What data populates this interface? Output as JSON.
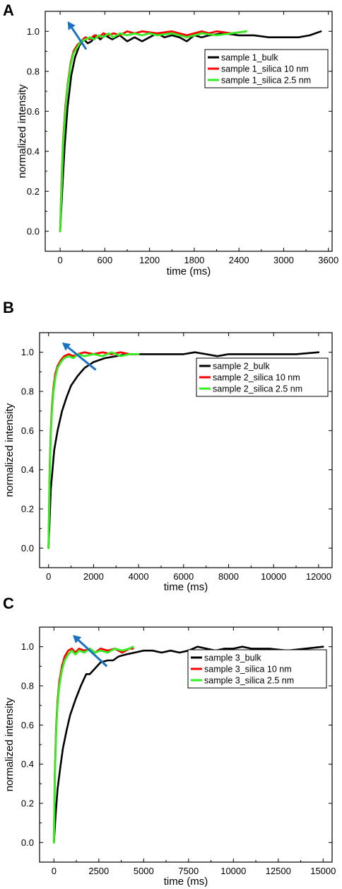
{
  "chart_data": [
    {
      "type": "line",
      "panel": "A",
      "xlabel": "time (ms)",
      "ylabel": "normalized intensity",
      "xlim": [
        -200,
        3650
      ],
      "ylim": [
        -0.1,
        1.1
      ],
      "xticks": [
        0,
        600,
        1200,
        1800,
        2400,
        3000,
        3600
      ],
      "yticks": [
        0.0,
        0.2,
        0.4,
        0.6,
        0.8,
        1.0
      ],
      "grid": false,
      "legend": "right",
      "arrow": {
        "from": [
          350,
          0.91
        ],
        "to": [
          100,
          1.05
        ]
      },
      "series": [
        {
          "name": "sample 1_bulk",
          "color": "#000000",
          "points": [
            [
              0,
              0.0
            ],
            [
              30,
              0.22
            ],
            [
              60,
              0.42
            ],
            [
              100,
              0.62
            ],
            [
              150,
              0.78
            ],
            [
              200,
              0.87
            ],
            [
              260,
              0.93
            ],
            [
              320,
              0.96
            ],
            [
              370,
              0.94
            ],
            [
              420,
              0.95
            ],
            [
              480,
              0.98
            ],
            [
              540,
              0.96
            ],
            [
              600,
              0.98
            ],
            [
              700,
              0.96
            ],
            [
              800,
              0.98
            ],
            [
              900,
              0.95
            ],
            [
              1000,
              0.97
            ],
            [
              1100,
              0.95
            ],
            [
              1200,
              0.97
            ],
            [
              1300,
              0.99
            ],
            [
              1400,
              0.97
            ],
            [
              1500,
              0.98
            ],
            [
              1600,
              0.97
            ],
            [
              1700,
              0.95
            ],
            [
              1800,
              0.98
            ],
            [
              1900,
              0.97
            ],
            [
              2000,
              0.98
            ],
            [
              2200,
              0.99
            ],
            [
              2400,
              0.98
            ],
            [
              2600,
              0.98
            ],
            [
              2800,
              0.97
            ],
            [
              3000,
              0.97
            ],
            [
              3200,
              0.97
            ],
            [
              3350,
              0.98
            ],
            [
              3500,
              1.0
            ]
          ]
        },
        {
          "name": "sample 1_silica 10 nm",
          "color": "#ff0000",
          "points": [
            [
              0,
              0.0
            ],
            [
              20,
              0.25
            ],
            [
              40,
              0.45
            ],
            [
              70,
              0.62
            ],
            [
              100,
              0.73
            ],
            [
              140,
              0.84
            ],
            [
              180,
              0.9
            ],
            [
              230,
              0.93
            ],
            [
              280,
              0.95
            ],
            [
              340,
              0.97
            ],
            [
              400,
              0.96
            ],
            [
              460,
              0.98
            ],
            [
              520,
              0.97
            ],
            [
              580,
              0.99
            ],
            [
              650,
              0.98
            ],
            [
              720,
              0.99
            ],
            [
              800,
              0.98
            ],
            [
              900,
              1.0
            ],
            [
              1000,
              0.99
            ],
            [
              1100,
              1.0
            ],
            [
              1300,
              0.99
            ],
            [
              1500,
              1.0
            ],
            [
              1700,
              0.98
            ],
            [
              1900,
              1.0
            ],
            [
              2000,
              0.99
            ],
            [
              2100,
              1.0
            ],
            [
              2300,
              0.99
            ],
            [
              2500,
              1.0
            ]
          ]
        },
        {
          "name": "sample 1_silica 2.5 nm",
          "color": "#33ee22",
          "points": [
            [
              0,
              0.0
            ],
            [
              20,
              0.22
            ],
            [
              40,
              0.43
            ],
            [
              70,
              0.6
            ],
            [
              100,
              0.72
            ],
            [
              140,
              0.83
            ],
            [
              180,
              0.89
            ],
            [
              230,
              0.92
            ],
            [
              280,
              0.95
            ],
            [
              340,
              0.96
            ],
            [
              400,
              0.97
            ],
            [
              460,
              0.96
            ],
            [
              520,
              0.98
            ],
            [
              580,
              0.97
            ],
            [
              650,
              0.99
            ],
            [
              720,
              0.97
            ],
            [
              800,
              0.99
            ],
            [
              900,
              0.98
            ],
            [
              1000,
              0.99
            ],
            [
              1100,
              0.98
            ],
            [
              1200,
              0.99
            ],
            [
              1300,
              0.98
            ],
            [
              1500,
              0.99
            ],
            [
              1700,
              0.97
            ],
            [
              1900,
              0.99
            ],
            [
              2100,
              0.98
            ],
            [
              2300,
              0.99
            ],
            [
              2500,
              1.0
            ]
          ]
        }
      ]
    },
    {
      "type": "line",
      "panel": "B",
      "xlabel": "time (ms)",
      "ylabel": "normalized intensity",
      "xlim": [
        -400,
        12600
      ],
      "ylim": [
        -0.1,
        1.1
      ],
      "xticks": [
        0,
        2000,
        4000,
        6000,
        8000,
        10000,
        12000
      ],
      "yticks": [
        0.0,
        0.2,
        0.4,
        0.6,
        0.8,
        1.0
      ],
      "grid": false,
      "legend": "right",
      "arrow": {
        "from": [
          2100,
          0.91
        ],
        "to": [
          600,
          1.05
        ]
      },
      "series": [
        {
          "name": "sample 2_bulk",
          "color": "#000000",
          "points": [
            [
              0,
              0.0
            ],
            [
              100,
              0.3
            ],
            [
              250,
              0.5
            ],
            [
              400,
              0.6
            ],
            [
              600,
              0.7
            ],
            [
              800,
              0.77
            ],
            [
              1000,
              0.83
            ],
            [
              1300,
              0.88
            ],
            [
              1600,
              0.92
            ],
            [
              2000,
              0.95
            ],
            [
              2500,
              0.97
            ],
            [
              3000,
              0.98
            ],
            [
              3500,
              0.99
            ],
            [
              4000,
              0.99
            ],
            [
              5000,
              0.99
            ],
            [
              6000,
              0.99
            ],
            [
              6500,
              1.0
            ],
            [
              7000,
              0.99
            ],
            [
              7500,
              0.98
            ],
            [
              8000,
              0.99
            ],
            [
              9000,
              0.99
            ],
            [
              10000,
              0.99
            ],
            [
              11000,
              0.99
            ],
            [
              12000,
              1.0
            ]
          ]
        },
        {
          "name": "sample 2_silica 10 nm",
          "color": "#ff0000",
          "points": [
            [
              0,
              0.0
            ],
            [
              50,
              0.4
            ],
            [
              100,
              0.6
            ],
            [
              150,
              0.72
            ],
            [
              220,
              0.82
            ],
            [
              300,
              0.89
            ],
            [
              400,
              0.93
            ],
            [
              550,
              0.96
            ],
            [
              700,
              0.98
            ],
            [
              900,
              0.99
            ],
            [
              1100,
              0.98
            ],
            [
              1300,
              0.99
            ],
            [
              1600,
              1.0
            ],
            [
              2000,
              0.99
            ],
            [
              2400,
              1.0
            ],
            [
              2800,
              0.99
            ],
            [
              3200,
              1.0
            ],
            [
              3600,
              0.99
            ],
            [
              4000,
              0.99
            ]
          ]
        },
        {
          "name": "sample 2_silica 2.5 nm",
          "color": "#33ee22",
          "points": [
            [
              0,
              0.0
            ],
            [
              50,
              0.38
            ],
            [
              100,
              0.58
            ],
            [
              150,
              0.7
            ],
            [
              220,
              0.8
            ],
            [
              300,
              0.87
            ],
            [
              400,
              0.92
            ],
            [
              550,
              0.95
            ],
            [
              700,
              0.97
            ],
            [
              900,
              0.98
            ],
            [
              1100,
              0.97
            ],
            [
              1300,
              0.99
            ],
            [
              1600,
              0.98
            ],
            [
              2000,
              0.99
            ],
            [
              2400,
              0.98
            ],
            [
              2800,
              1.0
            ],
            [
              3200,
              0.98
            ],
            [
              3600,
              0.99
            ],
            [
              4000,
              0.99
            ]
          ]
        }
      ]
    },
    {
      "type": "line",
      "panel": "C",
      "xlabel": "time (ms)",
      "ylabel": "normalized intensity",
      "xlim": [
        -800,
        15500
      ],
      "ylim": [
        -0.1,
        1.1
      ],
      "xticks": [
        0,
        2500,
        5000,
        7500,
        10000,
        12500,
        15000
      ],
      "yticks": [
        0.0,
        0.2,
        0.4,
        0.6,
        0.8,
        1.0
      ],
      "grid": false,
      "legend": "right",
      "arrow": {
        "from": [
          2950,
          0.9
        ],
        "to": [
          1050,
          1.06
        ]
      },
      "series": [
        {
          "name": "sample 3_bulk",
          "color": "#000000",
          "points": [
            [
              0,
              0.0
            ],
            [
              100,
              0.15
            ],
            [
              200,
              0.27
            ],
            [
              350,
              0.38
            ],
            [
              500,
              0.48
            ],
            [
              700,
              0.57
            ],
            [
              900,
              0.65
            ],
            [
              1200,
              0.73
            ],
            [
              1500,
              0.8
            ],
            [
              1800,
              0.86
            ],
            [
              2000,
              0.86
            ],
            [
              2300,
              0.89
            ],
            [
              2600,
              0.92
            ],
            [
              3000,
              0.93
            ],
            [
              3300,
              0.93
            ],
            [
              3600,
              0.95
            ],
            [
              4000,
              0.96
            ],
            [
              4500,
              0.97
            ],
            [
              5000,
              0.98
            ],
            [
              5500,
              0.98
            ],
            [
              6000,
              0.97
            ],
            [
              6500,
              0.98
            ],
            [
              7000,
              0.97
            ],
            [
              7500,
              0.98
            ],
            [
              8000,
              1.0
            ],
            [
              8500,
              0.99
            ],
            [
              9000,
              0.98
            ],
            [
              9500,
              0.99
            ],
            [
              10000,
              0.99
            ],
            [
              10500,
              1.0
            ],
            [
              11000,
              0.99
            ],
            [
              12000,
              0.99
            ],
            [
              13000,
              0.98
            ],
            [
              14000,
              0.99
            ],
            [
              15000,
              1.0
            ]
          ]
        },
        {
          "name": "sample 3_silica 10 nm",
          "color": "#ff0000",
          "points": [
            [
              0,
              0.0
            ],
            [
              50,
              0.35
            ],
            [
              120,
              0.58
            ],
            [
              200,
              0.72
            ],
            [
              300,
              0.82
            ],
            [
              450,
              0.9
            ],
            [
              600,
              0.95
            ],
            [
              800,
              0.98
            ],
            [
              1000,
              0.99
            ],
            [
              1200,
              0.97
            ],
            [
              1400,
              0.99
            ],
            [
              1700,
              0.98
            ],
            [
              2000,
              0.99
            ],
            [
              2300,
              0.97
            ],
            [
              2600,
              0.99
            ],
            [
              3000,
              0.98
            ],
            [
              3400,
              0.99
            ],
            [
              3800,
              0.97
            ],
            [
              4200,
              0.99
            ],
            [
              4400,
              0.99
            ]
          ]
        },
        {
          "name": "sample 3_silica 2.5 nm",
          "color": "#33ee22",
          "points": [
            [
              0,
              0.0
            ],
            [
              50,
              0.33
            ],
            [
              120,
              0.56
            ],
            [
              200,
              0.7
            ],
            [
              300,
              0.8
            ],
            [
              450,
              0.88
            ],
            [
              600,
              0.93
            ],
            [
              800,
              0.96
            ],
            [
              1000,
              0.98
            ],
            [
              1200,
              0.96
            ],
            [
              1400,
              0.98
            ],
            [
              1700,
              0.97
            ],
            [
              2000,
              0.99
            ],
            [
              2300,
              0.97
            ],
            [
              2600,
              0.98
            ],
            [
              3000,
              0.97
            ],
            [
              3400,
              0.99
            ],
            [
              3800,
              0.98
            ],
            [
              4200,
              0.99
            ],
            [
              4400,
              1.0
            ]
          ]
        }
      ]
    }
  ]
}
